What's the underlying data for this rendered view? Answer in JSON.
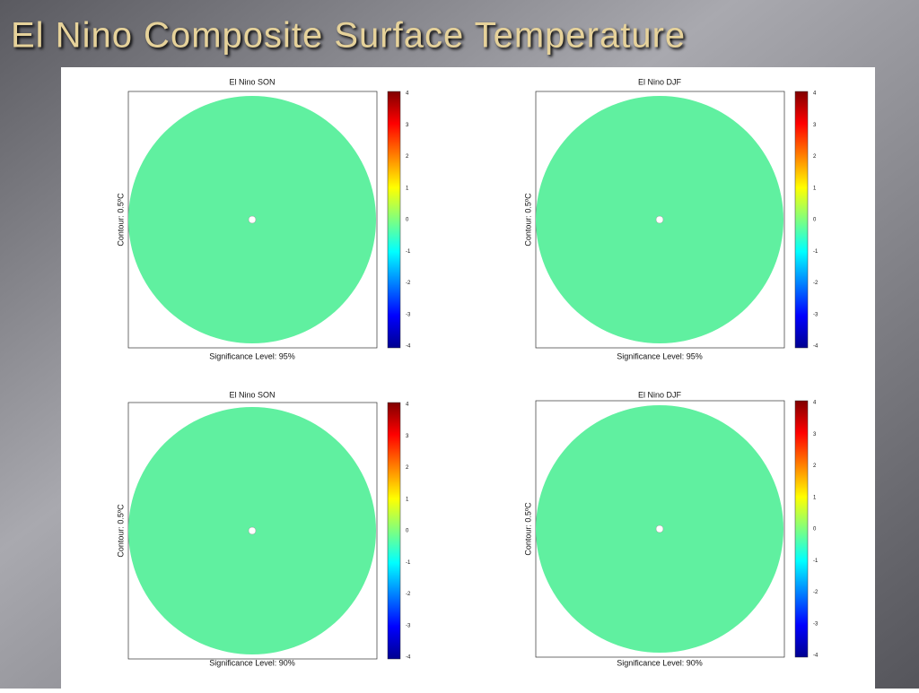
{
  "title": "El Nino Composite Surface Temperature",
  "panels": [
    {
      "title": "El Nino SON",
      "ylabel": "Contour: 0.5ºC",
      "xlabel": "Significance Level: 95%",
      "colorbar_ticks": [
        4,
        3,
        2,
        1,
        0,
        -1,
        -2,
        -3,
        -4
      ]
    },
    {
      "title": "El Nino DJF",
      "ylabel": "Contour: 0.5ºC",
      "xlabel": "Significance Level: 95%",
      "colorbar_ticks": [
        4,
        3,
        2,
        1,
        0,
        -1,
        -2,
        -3,
        -4
      ]
    },
    {
      "title": "El Nino SON",
      "ylabel": "Contour: 0.5ºC",
      "xlabel": "Significance Level: 90%",
      "colorbar_ticks": [
        4,
        3,
        2,
        1,
        0,
        -1,
        -2,
        -3,
        -4
      ]
    },
    {
      "title": "El Nino DJF",
      "ylabel": "Contour: 0.5ºC",
      "xlabel": "Significance Level: 90%",
      "colorbar_ticks": [
        4,
        3,
        2,
        1,
        0,
        -1,
        -2,
        -3,
        -4
      ]
    }
  ]
}
